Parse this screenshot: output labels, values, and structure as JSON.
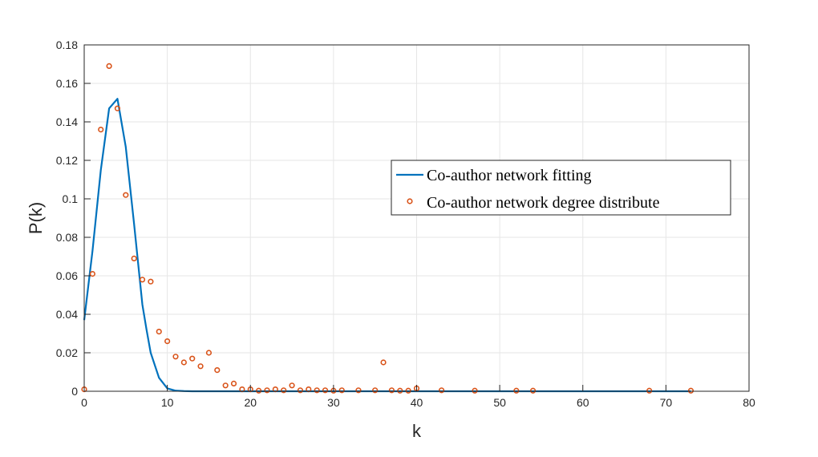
{
  "chart_data": {
    "type": "line",
    "xlabel": "k",
    "ylabel": "P(k)",
    "xlim": [
      0,
      80
    ],
    "ylim": [
      0,
      0.18
    ],
    "xticks": [
      "0",
      "10",
      "20",
      "30",
      "40",
      "50",
      "60",
      "70",
      "80"
    ],
    "yticks": [
      "0",
      "0.02",
      "0.04",
      "0.06",
      "0.08",
      "0.1",
      "0.12",
      "0.14",
      "0.16",
      "0.18"
    ],
    "grid": true,
    "legend_position": "center-right",
    "series": [
      {
        "name": "Co-author network fitting",
        "style": "line",
        "color": "#0072BD",
        "x": [
          0,
          1,
          2,
          3,
          4,
          5,
          6,
          7,
          7.5,
          8,
          9,
          10,
          11,
          12,
          13,
          14,
          15,
          20,
          30,
          40,
          50,
          60,
          70,
          73
        ],
        "y": [
          0.037,
          0.073,
          0.115,
          0.147,
          0.152,
          0.127,
          0.087,
          0.045,
          0.032,
          0.02,
          0.007,
          0.0015,
          0.0003,
          0.0001,
          0,
          0,
          0,
          0,
          0,
          0,
          0,
          0,
          0,
          0
        ]
      },
      {
        "name": "Co-author network degree distribute",
        "style": "markers",
        "color": "#D95319",
        "x": [
          0,
          1,
          2,
          3,
          4,
          5,
          6,
          7,
          8,
          9,
          10,
          11,
          12,
          13,
          14,
          15,
          16,
          17,
          18,
          19,
          20,
          21,
          22,
          23,
          24,
          25,
          26,
          27,
          28,
          29,
          30,
          31,
          33,
          35,
          36,
          37,
          38,
          39,
          40,
          43,
          47,
          52,
          54,
          68,
          73
        ],
        "y": [
          0.001,
          0.061,
          0.136,
          0.169,
          0.147,
          0.102,
          0.069,
          0.058,
          0.057,
          0.031,
          0.026,
          0.018,
          0.015,
          0.017,
          0.013,
          0.02,
          0.011,
          0.003,
          0.004,
          0.001,
          0.001,
          0.0003,
          0.0005,
          0.001,
          0.0005,
          0.003,
          0.0005,
          0.001,
          0.0005,
          0.0005,
          0.0003,
          0.0005,
          0.0005,
          0.0005,
          0.015,
          0.0005,
          0.0003,
          0.0003,
          0.0015,
          0.0005,
          0.0003,
          0.0003,
          0.0003,
          0.0003,
          0.0003
        ]
      }
    ]
  }
}
